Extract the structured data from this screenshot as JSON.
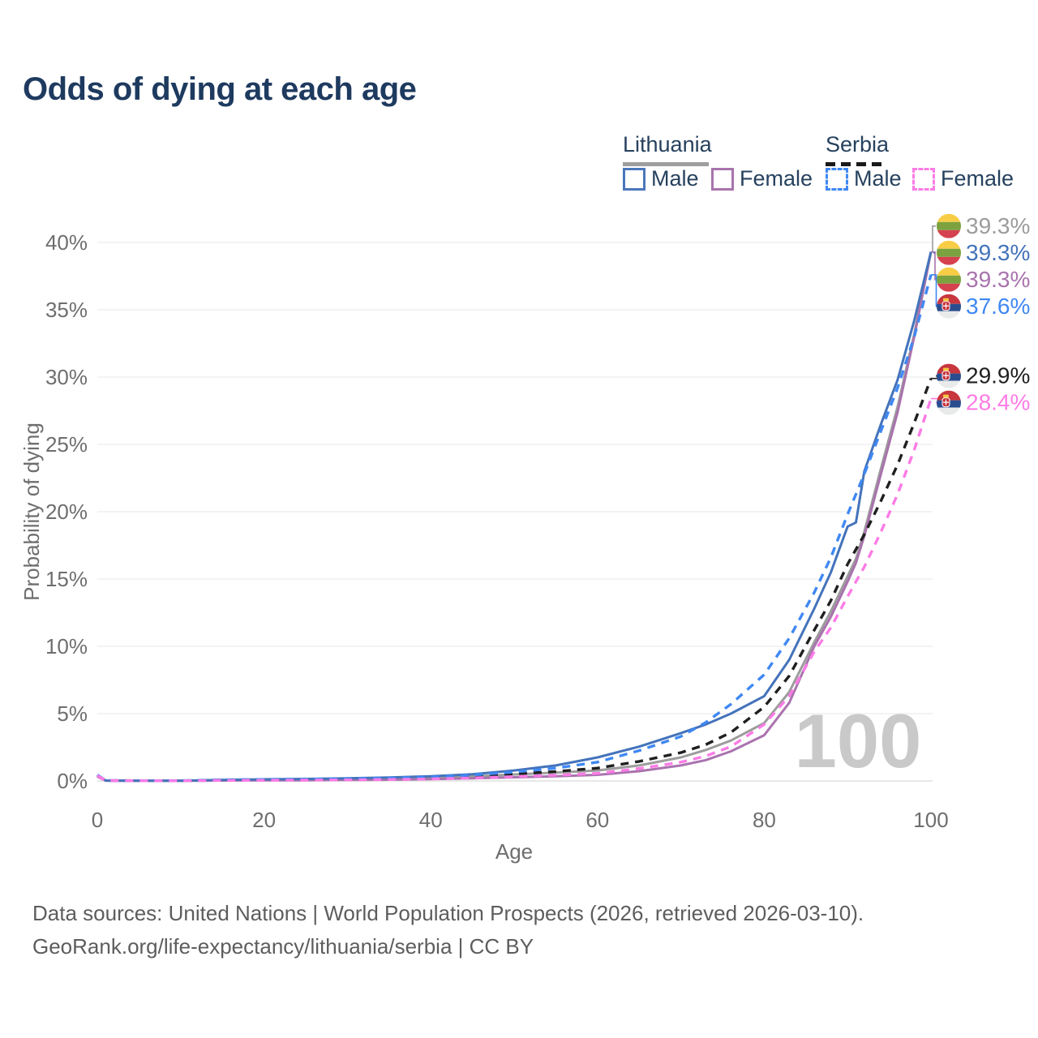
{
  "page": {
    "title": "Odds of dying at each age"
  },
  "legend": {
    "groups": [
      {
        "label": "Lithuania",
        "line_style": "solid",
        "underline_color": "#9e9e9e"
      },
      {
        "label": "Serbia",
        "line_style": "dashed",
        "underline_color": "#1a1a1a"
      }
    ],
    "items": [
      {
        "group": "Lithuania",
        "label": "Male",
        "color": "#4b77bb",
        "dash": false
      },
      {
        "group": "Lithuania",
        "label": "Female",
        "color": "#a874ad",
        "dash": false
      },
      {
        "group": "Serbia",
        "label": "Male",
        "color": "#3f88f3",
        "dash": true
      },
      {
        "group": "Serbia",
        "label": "Female",
        "color": "#fc7be6",
        "dash": true
      }
    ]
  },
  "chart_data": {
    "type": "line",
    "title": "Odds of dying at each age",
    "xlabel": "Age",
    "ylabel": "Probability of dying",
    "xlim": [
      0,
      100
    ],
    "ylim": [
      0,
      40
    ],
    "x_ticks": [
      0,
      20,
      40,
      60,
      80,
      100
    ],
    "y_tick_labels": [
      "0%",
      "5%",
      "10%",
      "15%",
      "20%",
      "25%",
      "30%",
      "35%",
      "40%"
    ],
    "y_tick_values": [
      0,
      5,
      10,
      15,
      20,
      25,
      30,
      35,
      40
    ],
    "grid": "horizontal",
    "legend_position": "top-right",
    "watermark": "100",
    "x": [
      0,
      1,
      5,
      10,
      15,
      20,
      25,
      30,
      35,
      40,
      45,
      50,
      55,
      60,
      65,
      70,
      73,
      76,
      80,
      83,
      86,
      88,
      90,
      91,
      92,
      94,
      96,
      98,
      100
    ],
    "series": [
      {
        "name": "Lithuania",
        "slug": "lithuania-total",
        "country": "lt",
        "color": "#9c9c9c",
        "dash": false,
        "values": [
          0.37,
          0.03,
          0.02,
          0.02,
          0.05,
          0.07,
          0.09,
          0.12,
          0.16,
          0.23,
          0.33,
          0.48,
          0.62,
          0.78,
          1.15,
          1.75,
          2.3,
          3.0,
          4.3,
          6.6,
          10.3,
          12.6,
          15.2,
          16.5,
          18.5,
          23.2,
          27.8,
          33.2,
          39.3
        ]
      },
      {
        "name": "Lithuania Female",
        "slug": "lithuania-female",
        "country": "lt",
        "color": "#a973ae",
        "dash": false,
        "values": [
          0.33,
          0.02,
          0.015,
          0.015,
          0.03,
          0.05,
          0.05,
          0.07,
          0.09,
          0.13,
          0.19,
          0.27,
          0.35,
          0.45,
          0.72,
          1.15,
          1.55,
          2.2,
          3.4,
          5.8,
          10.0,
          12.2,
          14.8,
          16.2,
          18.2,
          22.8,
          27.4,
          33.0,
          39.3
        ]
      },
      {
        "name": "Lithuania Male",
        "slug": "lithuania-male",
        "country": "lt",
        "color": "#4473bb",
        "dash": false,
        "values": [
          0.4,
          0.03,
          0.02,
          0.02,
          0.08,
          0.12,
          0.15,
          0.2,
          0.26,
          0.35,
          0.5,
          0.78,
          1.15,
          1.75,
          2.55,
          3.55,
          4.2,
          5.0,
          6.3,
          9.0,
          12.8,
          15.5,
          18.9,
          19.2,
          23.0,
          26.5,
          29.8,
          34.2,
          39.3
        ]
      },
      {
        "name": "Serbia",
        "slug": "serbia-total",
        "country": "rs",
        "color": "#1f1f1f",
        "dash": true,
        "values": [
          0.42,
          0.03,
          0.02,
          0.02,
          0.06,
          0.08,
          0.09,
          0.12,
          0.16,
          0.23,
          0.35,
          0.52,
          0.7,
          0.95,
          1.45,
          2.1,
          2.7,
          3.6,
          5.5,
          7.8,
          11.2,
          13.4,
          16.1,
          17.2,
          18.3,
          20.8,
          23.5,
          26.6,
          29.9
        ]
      },
      {
        "name": "Serbia Male",
        "slug": "serbia-male",
        "country": "rs",
        "color": "#3f88f3",
        "dash": true,
        "values": [
          0.45,
          0.03,
          0.02,
          0.02,
          0.09,
          0.11,
          0.13,
          0.16,
          0.21,
          0.29,
          0.44,
          0.66,
          0.95,
          1.4,
          2.25,
          3.3,
          4.35,
          5.7,
          7.9,
          10.6,
          14.0,
          16.6,
          19.8,
          21.3,
          22.8,
          26.0,
          29.2,
          33.0,
          37.6
        ]
      },
      {
        "name": "Serbia Female",
        "slug": "serbia-female",
        "country": "rs",
        "color": "#fc7be6",
        "dash": true,
        "values": [
          0.4,
          0.03,
          0.015,
          0.015,
          0.04,
          0.05,
          0.06,
          0.08,
          0.1,
          0.15,
          0.22,
          0.32,
          0.43,
          0.56,
          0.92,
          1.4,
          1.85,
          2.55,
          4.2,
          6.3,
          9.6,
          11.4,
          13.7,
          14.8,
          15.9,
          18.5,
          21.3,
          24.6,
          28.4
        ]
      }
    ],
    "end_labels": [
      {
        "text": "39.3%",
        "value": 39.3,
        "color": "#9c9c9c",
        "flag": "lt",
        "series": "Lithuania"
      },
      {
        "text": "39.3%",
        "value": 39.3,
        "color": "#4473bb",
        "flag": "lt",
        "series": "Lithuania Male"
      },
      {
        "text": "39.3%",
        "value": 39.3,
        "color": "#a973ae",
        "flag": "lt",
        "series": "Lithuania Female"
      },
      {
        "text": "37.6%",
        "value": 37.6,
        "color": "#3f88f3",
        "flag": "rs",
        "series": "Serbia Male"
      },
      {
        "text": "29.9%",
        "value": 29.9,
        "color": "#1f1f1f",
        "flag": "rs",
        "series": "Serbia"
      },
      {
        "text": "28.4%",
        "value": 28.4,
        "color": "#fd7ce5",
        "flag": "rs",
        "series": "Serbia Female"
      }
    ],
    "flag_colors": {
      "lt": [
        "#F8CD46",
        "#7BA23F",
        "#D5414E"
      ],
      "rs": [
        "#C8363E",
        "#2A4D8F",
        "#E9EBEB"
      ]
    }
  },
  "footer": {
    "line1": "Data sources: United Nations | World Population Prospects (2026, retrieved 2026-03-10).",
    "line2": "GeoRank.org/life-expectancy/lithuania/serbia | CC BY"
  }
}
